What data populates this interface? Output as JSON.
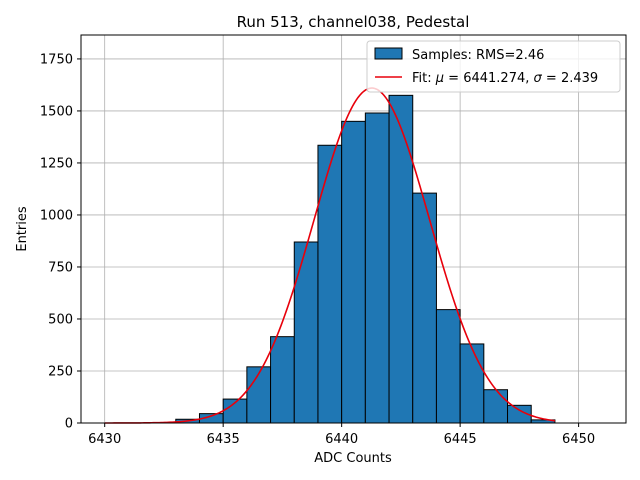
{
  "chart_data": {
    "type": "bar",
    "title": "Run 513, channel038, Pedestal",
    "xlabel": "ADC Counts",
    "ylabel": "Entries",
    "xlim": [
      6429,
      6452
    ],
    "ylim": [
      0,
      1865
    ],
    "xticks": [
      6430,
      6435,
      6440,
      6445,
      6450
    ],
    "yticks": [
      0,
      250,
      500,
      750,
      1000,
      1250,
      1500,
      1750
    ],
    "grid": true,
    "legend_position": "top-right",
    "histogram": {
      "name": "Samples: RMS=2.46",
      "color": "#1f77b4",
      "bin_edges": [
        6433,
        6434,
        6435,
        6436,
        6437,
        6438,
        6439,
        6440,
        6441,
        6442,
        6443,
        6444,
        6445,
        6446,
        6447,
        6448,
        6449
      ],
      "counts": [
        18,
        45,
        115,
        270,
        415,
        870,
        1335,
        1450,
        1490,
        1575,
        1105,
        545,
        380,
        160,
        85,
        15
      ]
    },
    "fit": {
      "label_prefix": "Fit: ",
      "mu_symbol": "μ",
      "sigma_symbol": "σ",
      "mu": "6441.274",
      "sigma": "2.439",
      "mu_value": 6441.274,
      "sigma_value": 2.439,
      "amplitude": 1610,
      "x_range": [
        6430,
        6449
      ],
      "color": "#e8000b"
    }
  }
}
